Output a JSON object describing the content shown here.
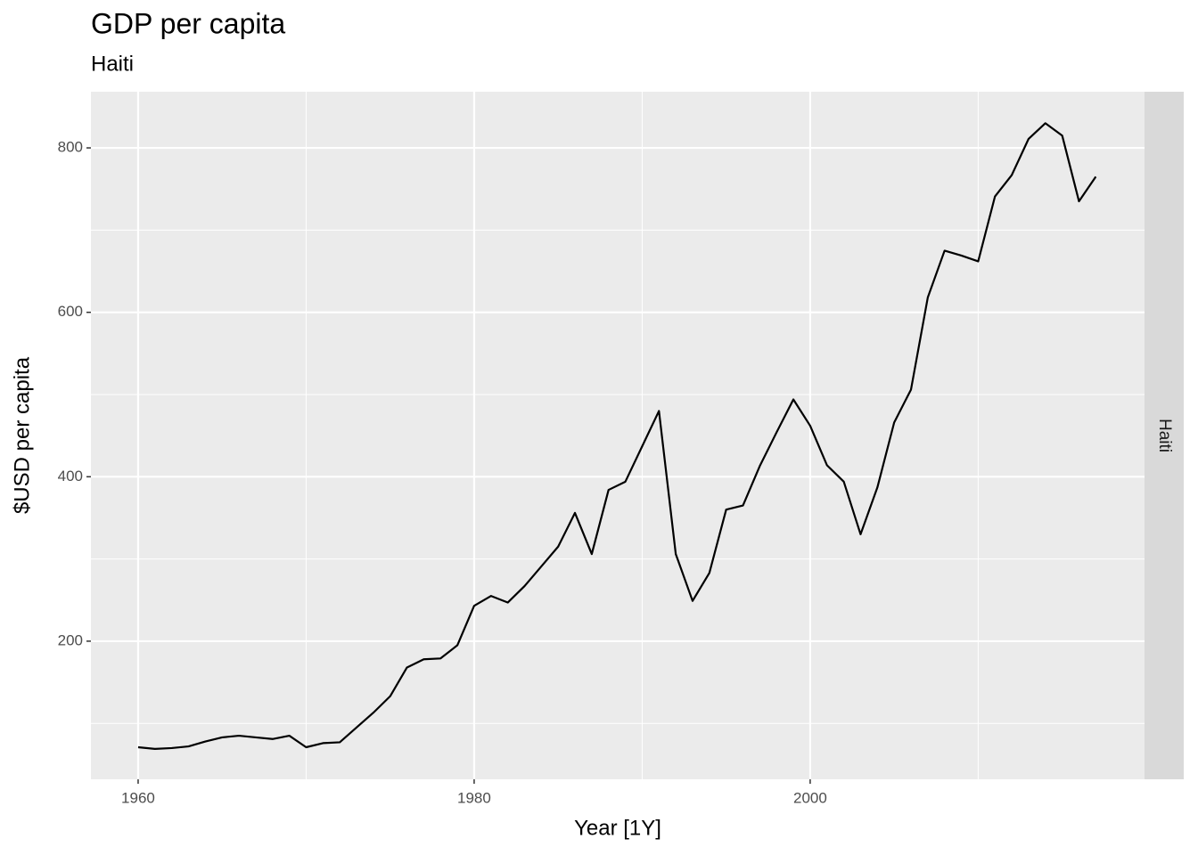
{
  "chart_data": {
    "type": "line",
    "title": "GDP per capita",
    "subtitle": "Haiti",
    "facet": "Haiti",
    "x_label": "Year [1Y]",
    "y_label": "$USD per capita",
    "x": [
      1960,
      1961,
      1962,
      1963,
      1964,
      1965,
      1966,
      1967,
      1968,
      1969,
      1970,
      1971,
      1972,
      1973,
      1974,
      1975,
      1976,
      1977,
      1978,
      1979,
      1980,
      1981,
      1982,
      1983,
      1984,
      1985,
      1986,
      1987,
      1988,
      1989,
      1990,
      1991,
      1992,
      1993,
      1994,
      1995,
      1996,
      1997,
      1998,
      1999,
      2000,
      2001,
      2002,
      2003,
      2004,
      2005,
      2006,
      2007,
      2008,
      2009,
      2010,
      2011,
      2012,
      2013,
      2014,
      2015,
      2016,
      2017
    ],
    "series": [
      {
        "name": "Haiti",
        "color": "#000000",
        "values": [
          71,
          69,
          70,
          72,
          78,
          83,
          85,
          83,
          81,
          85,
          71,
          76,
          77,
          95,
          113,
          133,
          168,
          178,
          179,
          195,
          243,
          255,
          247,
          267,
          291,
          315,
          356,
          306,
          384,
          394,
          437,
          480,
          306,
          249,
          283,
          360,
          365,
          413,
          454,
          494,
          462,
          414,
          394,
          330,
          387,
          466,
          506,
          618,
          675,
          669,
          662,
          741,
          767,
          811,
          830,
          815,
          735,
          765
        ]
      }
    ],
    "xlim": [
      1957.19,
      2019.9
    ],
    "ylim": [
      32,
      868.3
    ],
    "xticks": [
      1960,
      1980,
      2000
    ],
    "yticks": [
      200,
      400,
      600,
      800
    ],
    "xminor": [
      1970,
      1990,
      2010
    ],
    "yminor": [
      100,
      300,
      500,
      700
    ],
    "grid": true
  }
}
